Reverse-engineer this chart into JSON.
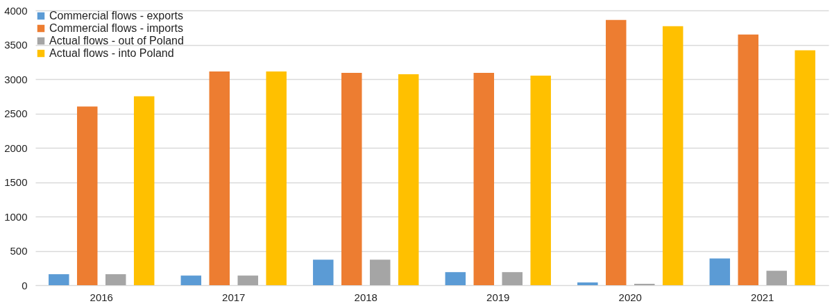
{
  "chart_data": {
    "type": "bar",
    "categories": [
      "2016",
      "2017",
      "2018",
      "2019",
      "2020",
      "2021"
    ],
    "series": [
      {
        "name": "Commercial flows - exports",
        "color": "#5b9bd5",
        "values": [
          160,
          140,
          370,
          190,
          40,
          390
        ]
      },
      {
        "name": "Commercial flows - imports",
        "color": "#ed7d31",
        "values": [
          2600,
          3110,
          3090,
          3090,
          3860,
          3650
        ]
      },
      {
        "name": "Actual flows - out of Poland",
        "color": "#a5a5a5",
        "values": [
          160,
          140,
          370,
          190,
          20,
          210
        ]
      },
      {
        "name": "Actual flows - into Poland",
        "color": "#ffc000",
        "values": [
          2750,
          3110,
          3070,
          3050,
          3770,
          3420
        ]
      }
    ],
    "ylim": [
      0,
      4000
    ],
    "yticks": [
      0,
      500,
      1000,
      1500,
      2000,
      2500,
      3000,
      3500,
      4000
    ],
    "grid": "y",
    "legend": "top left"
  }
}
